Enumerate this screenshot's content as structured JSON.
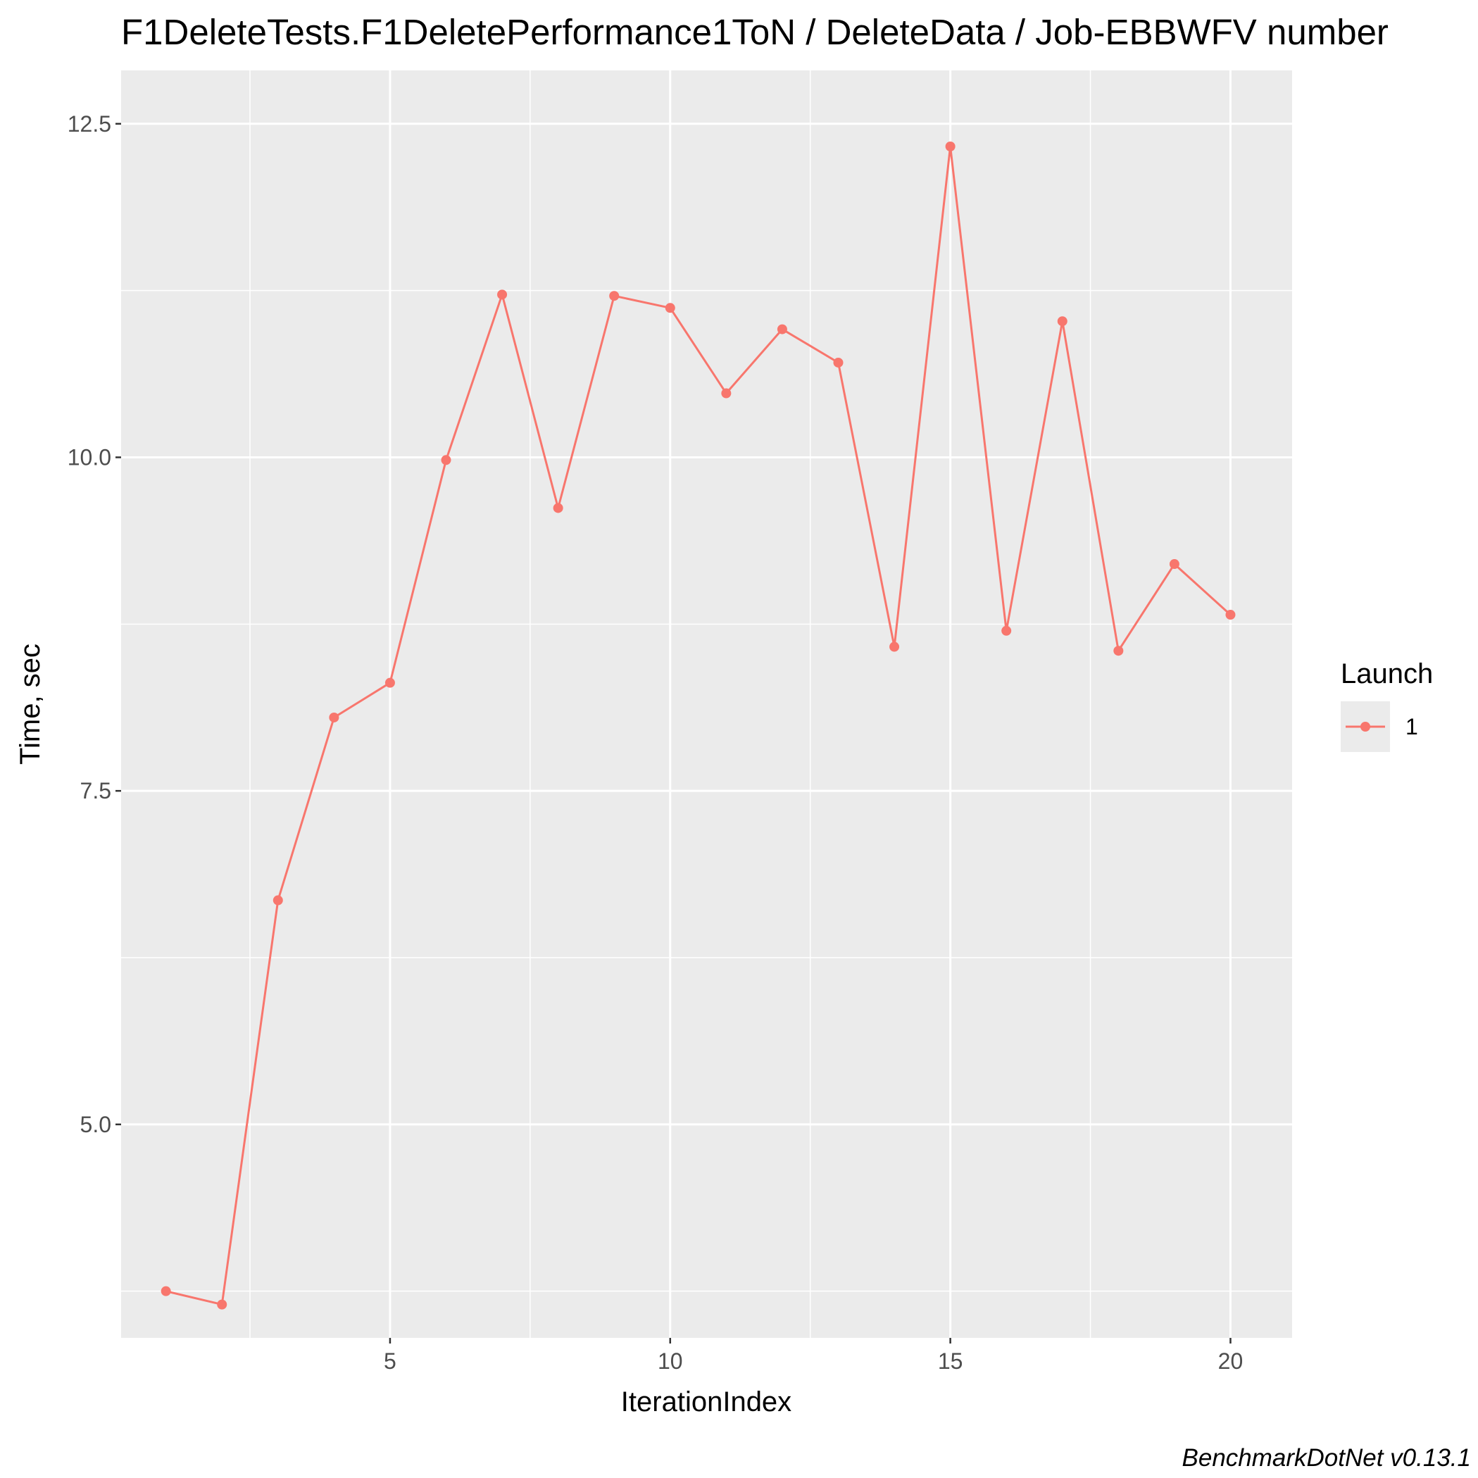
{
  "chart_data": {
    "type": "line",
    "title": "F1DeleteTests.F1DeletePerformance1ToN / DeleteData / Job-EBBWFV number",
    "xlabel": "IterationIndex",
    "ylabel": "Time, sec",
    "xlim": [
      0.2,
      21.1
    ],
    "ylim": [
      3.4,
      12.9
    ],
    "x_ticks": [
      5,
      10,
      15,
      20
    ],
    "x_tick_labels": [
      "5",
      "10",
      "15",
      "20"
    ],
    "y_ticks": [
      5.0,
      7.5,
      10.0,
      12.5
    ],
    "y_tick_labels": [
      "5.0",
      "7.5",
      "10.0",
      "12.5"
    ],
    "grid": true,
    "legend": {
      "title": "Launch",
      "position": "right"
    },
    "series": [
      {
        "name": "1",
        "color": "#F8766D",
        "x": [
          1,
          2,
          3,
          4,
          5,
          6,
          7,
          8,
          9,
          10,
          11,
          12,
          13,
          14,
          15,
          16,
          17,
          18,
          19,
          20
        ],
        "y": [
          3.75,
          3.65,
          6.68,
          8.05,
          8.31,
          9.98,
          11.22,
          9.62,
          11.21,
          11.12,
          10.48,
          10.96,
          10.71,
          8.58,
          12.33,
          8.7,
          11.02,
          8.55,
          9.2,
          8.82
        ]
      }
    ]
  },
  "caption": "BenchmarkDotNet v0.13.1"
}
